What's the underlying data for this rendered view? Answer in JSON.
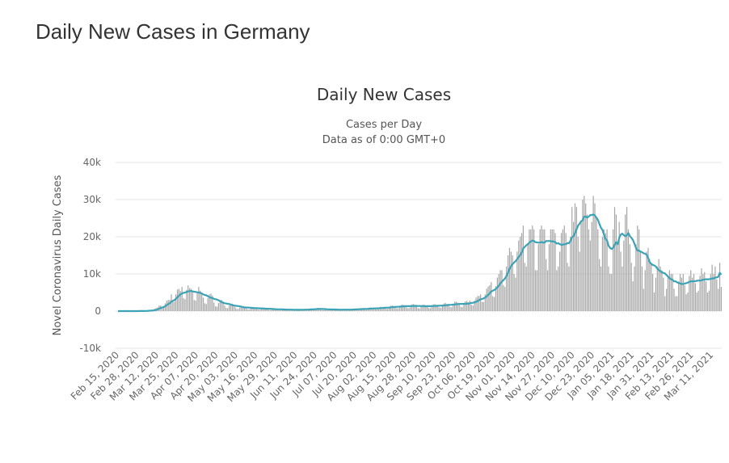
{
  "page": {
    "title": "Daily New Cases in Germany"
  },
  "chart_data": {
    "type": "bar",
    "title": "Daily New Cases",
    "subtitle_lines": [
      "Cases per Day",
      "Data as of 0:00 GMT+0"
    ],
    "xlabel": "",
    "ylabel": "Novel Coronavirus Daily Cases",
    "ylim": [
      -10000,
      40000
    ],
    "y_ticks": [
      40000,
      30000,
      20000,
      10000,
      0,
      -10000
    ],
    "y_tick_labels": [
      "40k",
      "30k",
      "20k",
      "10k",
      "0",
      "-10k"
    ],
    "grid": true,
    "legend": "none",
    "start_date": "2020-02-15",
    "x_tick_labels": [
      "Feb 15, 2020",
      "Feb 28, 2020",
      "Mar 12, 2020",
      "Mar 25, 2020",
      "Apr 07, 2020",
      "Apr 20, 2020",
      "May 03, 2020",
      "May 16, 2020",
      "May 29, 2020",
      "Jun 11, 2020",
      "Jun 24, 2020",
      "Jul 07, 2020",
      "Jul 20, 2020",
      "Aug 02, 2020",
      "Aug 15, 2020",
      "Aug 28, 2020",
      "Sep 10, 2020",
      "Sep 23, 2020",
      "Oct 06, 2020",
      "Oct 19, 2020",
      "Nov 01, 2020",
      "Nov 14, 2020",
      "Nov 27, 2020",
      "Dec 10, 2020",
      "Dec 23, 2020",
      "Jan 05, 2021",
      "Jan 18, 2021",
      "Jan 31, 2021",
      "Feb 13, 2021",
      "Feb 26, 2021",
      "Mar 11, 2021"
    ],
    "colors": {
      "bars": "#a6a6a6",
      "line": "#3ba3b5",
      "grid": "#e6e6e6"
    },
    "series": [
      {
        "type": "bar",
        "values": [
          0,
          0,
          0,
          0,
          0,
          0,
          0,
          0,
          0,
          0,
          20,
          25,
          20,
          5,
          10,
          20,
          30,
          50,
          100,
          150,
          200,
          250,
          150,
          200,
          600,
          800,
          1000,
          1500,
          1500,
          1100,
          1200,
          2100,
          2800,
          3000,
          3000,
          4500,
          2700,
          2500,
          4500,
          5800,
          6000,
          5400,
          6500,
          3500,
          3200,
          5700,
          6900,
          6200,
          6000,
          5500,
          3000,
          2800,
          5000,
          6500,
          5500,
          5000,
          3600,
          2100,
          1900,
          3500,
          4500,
          4700,
          4200,
          2300,
          1300,
          1200,
          2200,
          2900,
          3000,
          2600,
          1500,
          900,
          800,
          1500,
          2000,
          2000,
          1800,
          1000,
          600,
          550,
          1000,
          1300,
          1350,
          1200,
          800,
          500,
          450,
          800,
          1000,
          1100,
          950,
          650,
          400,
          350,
          650,
          850,
          900,
          800,
          500,
          300,
          280,
          500,
          650,
          680,
          600,
          400,
          240,
          220,
          400,
          520,
          540,
          480,
          350,
          210,
          190,
          350,
          460,
          470,
          420,
          400,
          240,
          220,
          400,
          520,
          540,
          480,
          600,
          360,
          330,
          600,
          780,
          810,
          720,
          450,
          270,
          250,
          450,
          590,
          610,
          540,
          380,
          230,
          210,
          380,
          490,
          510,
          460,
          400,
          240,
          220,
          400,
          520,
          540,
          480,
          550,
          330,
          300,
          550,
          720,
          740,
          660,
          700,
          420,
          390,
          700,
          910,
          950,
          840,
          850,
          510,
          470,
          850,
          1100,
          1150,
          1020,
          1100,
          660,
          600,
          1100,
          1430,
          1490,
          1320,
          1300,
          780,
          720,
          1300,
          1690,
          1760,
          1560,
          1400,
          840,
          770,
          1400,
          1820,
          1890,
          1680,
          1300,
          780,
          720,
          1300,
          1690,
          1760,
          1560,
          1400,
          840,
          770,
          1400,
          1820,
          1890,
          1680,
          1600,
          960,
          880,
          1600,
          2080,
          2160,
          1920,
          1900,
          1140,
          1050,
          1900,
          2470,
          2570,
          2280,
          2000,
          1200,
          1100,
          2000,
          2600,
          2700,
          2400,
          2800,
          1700,
          1500,
          2800,
          3600,
          4000,
          4100,
          4500,
          2500,
          2400,
          4500,
          6000,
          6600,
          7000,
          7800,
          4000,
          3800,
          6700,
          9000,
          10000,
          11000,
          11000,
          7000,
          6500,
          12000,
          15000,
          17000,
          16000,
          15000,
          10000,
          9000,
          16000,
          19000,
          20000,
          21000,
          23000,
          13000,
          12000,
          18000,
          22000,
          22000,
          23000,
          22000,
          11000,
          11000,
          18000,
          22000,
          23000,
          22000,
          22000,
          14000,
          11000,
          18000,
          22000,
          22000,
          22000,
          21000,
          11000,
          12000,
          16000,
          21000,
          22000,
          23000,
          21000,
          13000,
          12000,
          20000,
          28000,
          24000,
          29000,
          28000,
          20000,
          16000,
          24000,
          30000,
          31000,
          29000,
          26000,
          22000,
          19000,
          24000,
          31000,
          29000,
          25000,
          22000,
          14000,
          12000,
          20000,
          22000,
          21000,
          22000,
          12000,
          10000,
          10000,
          22000,
          28000,
          26000,
          18000,
          24000,
          16000,
          12000,
          19000,
          26000,
          28000,
          22000,
          18000,
          13000,
          8000,
          12000,
          18000,
          23000,
          22000,
          16000,
          12000,
          6000,
          11000,
          16000,
          17000,
          14000,
          13000,
          10000,
          5000,
          9000,
          12000,
          14000,
          12000,
          11000,
          9000,
          4000,
          6000,
          9000,
          11000,
          10000,
          10000,
          6000,
          4000,
          4000,
          8000,
          10000,
          9000,
          10000,
          7000,
          4500,
          5000,
          9500,
          11000,
          9000,
          10000,
          7500,
          5000,
          5500,
          9500,
          11500,
          10000,
          10500,
          8000,
          5000,
          5500,
          10000,
          12500,
          10000,
          12000,
          8500,
          6000,
          13000,
          6500
        ]
      },
      {
        "type": "line",
        "values_from": "moving average of bar values"
      }
    ]
  }
}
